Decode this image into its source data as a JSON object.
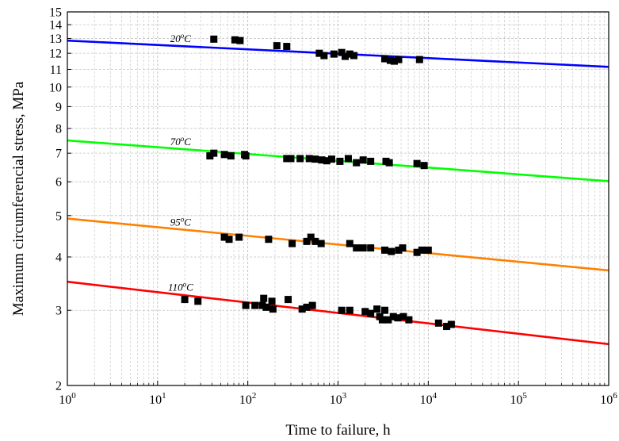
{
  "chart_data": {
    "type": "scatter",
    "xlabel": "Time to failure, h",
    "ylabel": "Maximum circumferencial stress, MPa",
    "x_scale": "log",
    "y_scale": "log",
    "xlim": [
      1,
      1000000
    ],
    "ylim": [
      2,
      15
    ],
    "grid": true,
    "x_ticks": [
      {
        "value": 1,
        "base": "10",
        "exp": "0"
      },
      {
        "value": 10,
        "base": "10",
        "exp": "1"
      },
      {
        "value": 100,
        "base": "10",
        "exp": "2"
      },
      {
        "value": 1000,
        "base": "10",
        "exp": "3"
      },
      {
        "value": 10000,
        "base": "10",
        "exp": "4"
      },
      {
        "value": 100000,
        "base": "10",
        "exp": "5"
      },
      {
        "value": 1000000,
        "base": "10",
        "exp": "6"
      }
    ],
    "y_ticks": [
      {
        "value": 2,
        "label": "2"
      },
      {
        "value": 3,
        "label": "3"
      },
      {
        "value": 4,
        "label": "4"
      },
      {
        "value": 5,
        "label": "5"
      },
      {
        "value": 6,
        "label": "6"
      },
      {
        "value": 7,
        "label": "7"
      },
      {
        "value": 8,
        "label": "8"
      },
      {
        "value": 9,
        "label": "9"
      },
      {
        "value": 10,
        "label": "10"
      },
      {
        "value": 11,
        "label": "11"
      },
      {
        "value": 12,
        "label": "12"
      },
      {
        "value": 13,
        "label": "13"
      },
      {
        "value": 14,
        "label": "14"
      },
      {
        "value": 15,
        "label": "15"
      }
    ],
    "series": [
      {
        "name": "20°C",
        "label_base": "20",
        "label_sup": "o",
        "label_unit": "C",
        "label_x": 18,
        "color": "#0000ff",
        "line": {
          "x": [
            1,
            1000000
          ],
          "y": [
            12.85,
            11.15
          ]
        },
        "points": [
          [
            42,
            12.95
          ],
          [
            72,
            12.9
          ],
          [
            82,
            12.85
          ],
          [
            210,
            12.5
          ],
          [
            270,
            12.45
          ],
          [
            620,
            12.0
          ],
          [
            700,
            11.85
          ],
          [
            900,
            11.95
          ],
          [
            1100,
            12.05
          ],
          [
            1200,
            11.8
          ],
          [
            1350,
            11.95
          ],
          [
            1500,
            11.85
          ],
          [
            3300,
            11.65
          ],
          [
            3800,
            11.55
          ],
          [
            4200,
            11.5
          ],
          [
            4700,
            11.6
          ],
          [
            8000,
            11.6
          ]
        ]
      },
      {
        "name": "70°C",
        "label_base": "70",
        "label_sup": "o",
        "label_unit": "C",
        "label_x": 18,
        "color": "#00ff00",
        "line": {
          "x": [
            1,
            1000000
          ],
          "y": [
            7.5,
            6.02
          ]
        },
        "points": [
          [
            38,
            6.9
          ],
          [
            42,
            7.0
          ],
          [
            55,
            6.95
          ],
          [
            65,
            6.9
          ],
          [
            92,
            6.95
          ],
          [
            95,
            6.9
          ],
          [
            270,
            6.8
          ],
          [
            300,
            6.8
          ],
          [
            380,
            6.8
          ],
          [
            480,
            6.8
          ],
          [
            560,
            6.78
          ],
          [
            660,
            6.75
          ],
          [
            750,
            6.72
          ],
          [
            850,
            6.78
          ],
          [
            1050,
            6.7
          ],
          [
            1300,
            6.8
          ],
          [
            1600,
            6.65
          ],
          [
            1900,
            6.75
          ],
          [
            2300,
            6.7
          ],
          [
            3400,
            6.7
          ],
          [
            3700,
            6.65
          ],
          [
            7500,
            6.62
          ],
          [
            9000,
            6.55
          ]
        ]
      },
      {
        "name": "95°C",
        "label_base": "95",
        "label_sup": "o",
        "label_unit": "C",
        "label_x": 18,
        "color": "#ff8000",
        "line": {
          "x": [
            1,
            1000000
          ],
          "y": [
            4.92,
            3.72
          ]
        },
        "points": [
          [
            55,
            4.45
          ],
          [
            62,
            4.4
          ],
          [
            80,
            4.45
          ],
          [
            170,
            4.4
          ],
          [
            310,
            4.3
          ],
          [
            450,
            4.35
          ],
          [
            500,
            4.45
          ],
          [
            560,
            4.35
          ],
          [
            650,
            4.3
          ],
          [
            1350,
            4.3
          ],
          [
            1600,
            4.2
          ],
          [
            1900,
            4.2
          ],
          [
            2300,
            4.2
          ],
          [
            3300,
            4.15
          ],
          [
            3900,
            4.12
          ],
          [
            4700,
            4.15
          ],
          [
            5200,
            4.2
          ],
          [
            7500,
            4.1
          ],
          [
            8500,
            4.15
          ],
          [
            10000,
            4.15
          ]
        ]
      },
      {
        "name": "110°C",
        "label_base": "110",
        "label_sup": "o",
        "label_unit": "C",
        "label_x": 18,
        "color": "#ff0000",
        "line": {
          "x": [
            1,
            1000000
          ],
          "y": [
            3.5,
            2.5
          ]
        },
        "points": [
          [
            20,
            3.18
          ],
          [
            28,
            3.15
          ],
          [
            95,
            3.08
          ],
          [
            120,
            3.08
          ],
          [
            145,
            3.08
          ],
          [
            150,
            3.2
          ],
          [
            160,
            3.05
          ],
          [
            185,
            3.15
          ],
          [
            190,
            3.02
          ],
          [
            280,
            3.18
          ],
          [
            400,
            3.02
          ],
          [
            450,
            3.05
          ],
          [
            520,
            3.08
          ],
          [
            1100,
            3.0
          ],
          [
            1350,
            3.0
          ],
          [
            2000,
            2.98
          ],
          [
            2300,
            2.95
          ],
          [
            2700,
            3.02
          ],
          [
            2900,
            2.9
          ],
          [
            3100,
            2.85
          ],
          [
            3300,
            3.0
          ],
          [
            3600,
            2.85
          ],
          [
            4100,
            2.9
          ],
          [
            4600,
            2.88
          ],
          [
            5300,
            2.9
          ],
          [
            6100,
            2.85
          ],
          [
            13000,
            2.8
          ],
          [
            16000,
            2.75
          ],
          [
            18000,
            2.78
          ]
        ]
      }
    ]
  }
}
